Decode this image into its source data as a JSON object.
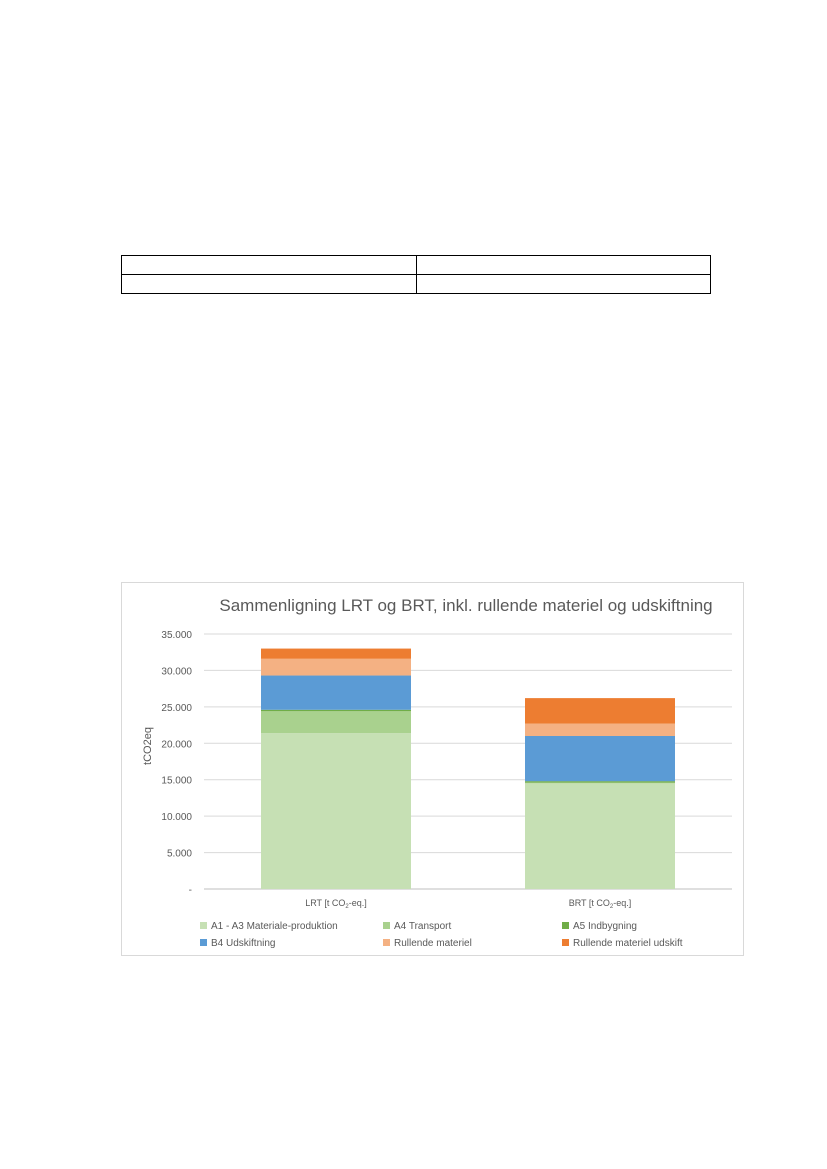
{
  "table": {
    "rows": [
      [
        "",
        ""
      ],
      [
        "",
        ""
      ]
    ]
  },
  "chart_data": {
    "type": "bar",
    "stacked": true,
    "title": "Sammenligning LRT og BRT, inkl. rullende materiel og udskiftning",
    "ylabel": "tCO2eq",
    "ylim": [
      0,
      35000
    ],
    "yticks": [
      0,
      5000,
      10000,
      15000,
      20000,
      25000,
      30000,
      35000
    ],
    "ytick_labels": [
      "-",
      "5.000",
      "10.000",
      "15.000",
      "20.000",
      "25.000",
      "30.000",
      "35.000"
    ],
    "grid": true,
    "legend_position": "bottom",
    "categories": [
      {
        "main": "LRT [t CO",
        "sub": "2",
        "rest": "-eq.]"
      },
      {
        "main": "BRT [t CO",
        "sub": "2",
        "rest": "-eq.]"
      }
    ],
    "series": [
      {
        "name": "A1 - A3 Materiale-produktion",
        "color": "#c6e0b4",
        "values": [
          21400,
          14500
        ]
      },
      {
        "name": "A4 Transport",
        "color": "#a9d18e",
        "values": [
          3000,
          100
        ]
      },
      {
        "name": "A5 Indbygning",
        "color": "#70ad47",
        "values": [
          200,
          200
        ]
      },
      {
        "name": "B4 Udskiftning",
        "color": "#5b9bd5",
        "values": [
          4700,
          6200
        ]
      },
      {
        "name": "Rullende materiel",
        "color": "#f4b183",
        "values": [
          2300,
          1700
        ]
      },
      {
        "name": "Rullende materiel udskift",
        "color": "#ed7d31",
        "values": [
          1400,
          3500
        ]
      }
    ]
  }
}
